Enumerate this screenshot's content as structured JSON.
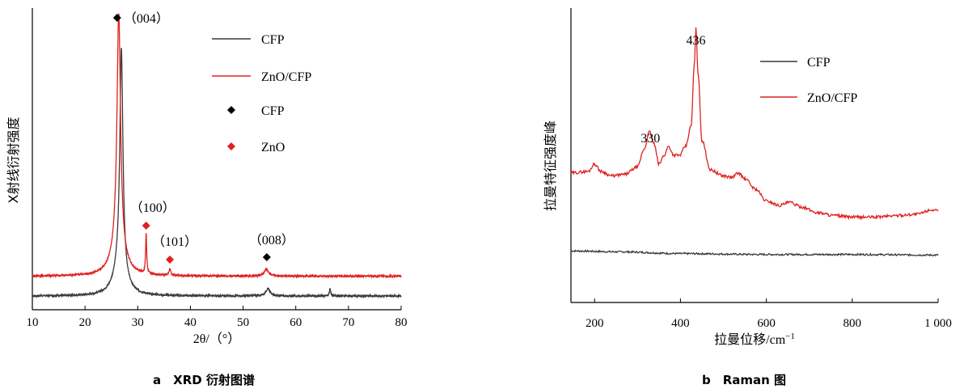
{
  "chart_data": [
    {
      "type": "line",
      "caption": "a　XRD 衍射图谱",
      "xlabel": "2θ/（°）",
      "ylabel": "X射线衍射强度",
      "xlim": [
        10,
        80
      ],
      "xticks": [
        10,
        20,
        30,
        40,
        50,
        60,
        70,
        80
      ],
      "y_ticks_shown": false,
      "grid": false,
      "legend": {
        "placement": "top-right",
        "entries": [
          {
            "label": "CFP",
            "kind": "line",
            "color": "#3a3a3a"
          },
          {
            "label": "ZnO/CFP",
            "kind": "line",
            "color": "#e02020"
          },
          {
            "label": "CFP",
            "kind": "diamond",
            "color": "#000000"
          },
          {
            "label": "ZnO",
            "kind": "diamond",
            "color": "#e02020"
          }
        ]
      },
      "series": [
        {
          "name": "CFP",
          "color": "#3a3a3a",
          "baseline": 0.02,
          "peaks": [
            {
              "x": 26.9,
              "height": 0.78,
              "width": 0.35
            },
            {
              "x": 26.6,
              "height": 0.1,
              "width": 1.3
            },
            {
              "x": 54.7,
              "height": 0.025,
              "width": 0.5
            },
            {
              "x": 66.5,
              "height": 0.025,
              "width": 0.15
            }
          ]
        },
        {
          "name": "ZnO/CFP",
          "color": "#e02020",
          "baseline": 0.09,
          "peaks": [
            {
              "x": 26.4,
              "height": 0.83,
              "width": 0.4
            },
            {
              "x": 26.3,
              "height": 0.1,
              "width": 1.4
            },
            {
              "x": 31.6,
              "height": 0.14,
              "width": 0.12
            },
            {
              "x": 36.1,
              "height": 0.025,
              "width": 0.18
            },
            {
              "x": 54.4,
              "height": 0.025,
              "width": 0.5
            }
          ]
        }
      ],
      "annotations": [
        {
          "text": "（004）",
          "x": 26.4,
          "marker": "diamond",
          "marker_color": "#000000"
        },
        {
          "text": "（100）",
          "x": 31.6,
          "marker": "diamond",
          "marker_color": "#e02020"
        },
        {
          "text": "（101）",
          "x": 36.1,
          "marker": "diamond",
          "marker_color": "#e02020"
        },
        {
          "text": "（008）",
          "x": 54.5,
          "marker": "diamond",
          "marker_color": "#000000"
        }
      ]
    },
    {
      "type": "line",
      "caption": "b　Raman 图",
      "xlabel": "拉曼位移/cm",
      "xlabel_sup": "−1",
      "ylabel": "拉曼特征强度峰",
      "xlim": [
        145,
        1000
      ],
      "xticks": [
        200,
        400,
        600,
        800,
        1000
      ],
      "xtick_labels": [
        "200",
        "400",
        "600",
        "800",
        "1 000"
      ],
      "y_ticks_shown": false,
      "grid": false,
      "legend": {
        "placement": "top-right",
        "entries": [
          {
            "label": "CFP",
            "kind": "line",
            "color": "#3a3a3a"
          },
          {
            "label": "ZnO/CFP",
            "kind": "line",
            "color": "#e02020"
          }
        ]
      },
      "series": [
        {
          "name": "CFP",
          "color": "#3a3a3a",
          "points": [
            [
              145,
              0.175
            ],
            [
              260,
              0.172
            ],
            [
              400,
              0.166
            ],
            [
              600,
              0.163
            ],
            [
              800,
              0.163
            ],
            [
              1000,
              0.161
            ]
          ]
        },
        {
          "name": "ZnO/CFP",
          "color": "#e02020",
          "points": [
            [
              145,
              0.44
            ],
            [
              185,
              0.445
            ],
            [
              200,
              0.47
            ],
            [
              215,
              0.445
            ],
            [
              240,
              0.43
            ],
            [
              270,
              0.435
            ],
            [
              300,
              0.46
            ],
            [
              315,
              0.52
            ],
            [
              328,
              0.58
            ],
            [
              338,
              0.54
            ],
            [
              350,
              0.47
            ],
            [
              362,
              0.5
            ],
            [
              372,
              0.53
            ],
            [
              385,
              0.5
            ],
            [
              398,
              0.5
            ],
            [
              412,
              0.53
            ],
            [
              425,
              0.6
            ],
            [
              432,
              0.8
            ],
            [
              436,
              0.93
            ],
            [
              441,
              0.78
            ],
            [
              450,
              0.55
            ],
            [
              470,
              0.45
            ],
            [
              500,
              0.43
            ],
            [
              520,
              0.425
            ],
            [
              535,
              0.44
            ],
            [
              550,
              0.42
            ],
            [
              575,
              0.385
            ],
            [
              600,
              0.345
            ],
            [
              630,
              0.33
            ],
            [
              655,
              0.34
            ],
            [
              680,
              0.325
            ],
            [
              720,
              0.305
            ],
            [
              760,
              0.295
            ],
            [
              800,
              0.29
            ],
            [
              850,
              0.29
            ],
            [
              900,
              0.295
            ],
            [
              950,
              0.3
            ],
            [
              985,
              0.315
            ],
            [
              1000,
              0.31
            ]
          ]
        }
      ],
      "annotations": [
        {
          "text": "436",
          "x": 436
        },
        {
          "text": "330",
          "x": 330
        }
      ]
    }
  ]
}
